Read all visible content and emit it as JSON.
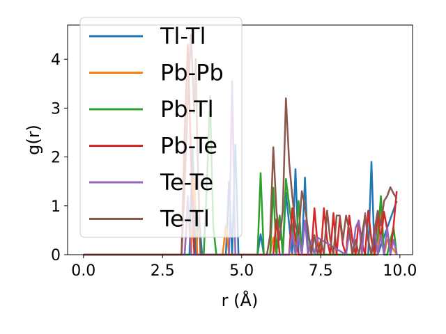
{
  "chart_data": {
    "type": "line",
    "xlabel": "r (Å)",
    "ylabel": "g(r)",
    "xlim": [
      -0.5,
      10.4
    ],
    "ylim": [
      0,
      4.7
    ],
    "xticks": [
      0.0,
      2.5,
      5.0,
      7.5,
      10.0
    ],
    "xtick_labels": [
      "0.0",
      "2.5",
      "5.0",
      "7.5",
      "10.0"
    ],
    "yticks": [
      0,
      1,
      2,
      3,
      4
    ],
    "ytick_labels": [
      "0",
      "1",
      "2",
      "3",
      "4"
    ],
    "grid": false,
    "legend_position": "top-left",
    "series": [
      {
        "name": "Tl-Tl",
        "color": "#1f77b4",
        "x": [
          0.0,
          3.35,
          3.45,
          3.55,
          3.65,
          3.75,
          4.5,
          4.6,
          4.7,
          4.8,
          4.9,
          5.5,
          5.6,
          5.7,
          6.1,
          6.2,
          6.3,
          6.4,
          6.6,
          6.7,
          6.8,
          6.9,
          7.0,
          7.1,
          8.9,
          9.0,
          9.1,
          9.2,
          9.3,
          9.9
        ],
        "y": [
          0,
          0,
          2.2,
          0,
          0.8,
          0,
          0,
          1.5,
          0,
          2.25,
          0,
          0,
          0.42,
          0,
          0,
          0.8,
          0,
          1.27,
          0,
          1.75,
          0,
          0,
          1.58,
          0,
          0,
          0,
          1.9,
          0,
          0,
          1.1
        ]
      },
      {
        "name": "Pb-Pb",
        "color": "#ff7f0e",
        "x": [
          0.0,
          3.2,
          3.3,
          3.4,
          3.5,
          3.6,
          4.4,
          4.5,
          4.6,
          5.9,
          6.0,
          6.1,
          7.3,
          7.4,
          7.5,
          9.3,
          9.4,
          9.5,
          9.6,
          9.9
        ],
        "y": [
          0,
          0,
          1.0,
          0,
          1.6,
          0,
          0,
          0.6,
          0,
          0,
          0.35,
          0,
          0,
          0.3,
          0,
          0,
          0.9,
          0,
          0.3,
          0
        ]
      },
      {
        "name": "Pb-Tl",
        "color": "#2ca02c",
        "x": [
          0.0,
          3.8,
          3.9,
          4.0,
          4.1,
          4.2,
          5.5,
          5.6,
          5.7,
          5.9,
          6.0,
          6.1,
          6.2,
          6.3,
          6.4,
          6.7,
          6.8,
          6.9,
          9.2,
          9.3,
          9.4,
          9.5,
          9.6,
          9.7,
          9.8,
          9.9
        ],
        "y": [
          0,
          0,
          1.4,
          3.25,
          0.6,
          0,
          0,
          1.67,
          0,
          0,
          1.37,
          0,
          0.8,
          0,
          1.55,
          0,
          1.1,
          0,
          0,
          0.35,
          1.2,
          0,
          0,
          0.3,
          0.55,
          0
        ]
      },
      {
        "name": "Pb-Te",
        "color": "#d62728",
        "x": [
          0.0,
          3.1,
          3.2,
          3.3,
          3.4,
          3.5,
          6.0,
          6.1,
          6.2,
          6.5,
          6.6,
          6.7,
          6.8,
          7.2,
          7.3,
          7.4,
          7.5,
          7.6,
          7.7,
          7.8,
          7.9,
          8.0,
          8.1,
          8.2,
          8.3,
          8.4,
          8.5,
          8.6,
          8.7,
          8.8,
          8.9,
          9.0,
          9.1,
          9.2,
          9.3,
          9.4,
          9.5,
          9.6,
          9.7,
          9.8,
          9.9
        ],
        "y": [
          0,
          0,
          2.5,
          4.3,
          2.0,
          0,
          0,
          0.72,
          0,
          0,
          0.95,
          0.3,
          0,
          0,
          0.95,
          0.2,
          0,
          0.95,
          0.3,
          0,
          0.85,
          0,
          0.75,
          0.2,
          0,
          0.8,
          0.3,
          0,
          0.7,
          0.25,
          0,
          0.9,
          0.3,
          0,
          0.85,
          0.3,
          0.88,
          0.5,
          0,
          0.6,
          1.3
        ]
      },
      {
        "name": "Te-Te",
        "color": "#9467bd",
        "x": [
          0.0,
          3.2,
          3.3,
          3.4,
          4.6,
          4.7,
          4.8,
          6.5,
          6.6,
          6.7,
          6.8,
          6.9,
          7.0,
          7.1,
          7.2,
          7.3,
          7.4,
          8.3,
          8.4,
          8.5,
          8.6,
          8.7,
          8.8,
          8.9,
          9.0,
          9.1,
          9.2,
          9.3,
          9.4,
          9.5,
          9.6,
          9.7,
          9.8,
          9.9
        ],
        "y": [
          0,
          0,
          1.2,
          0,
          0,
          3.55,
          0,
          0,
          0.45,
          0,
          0.4,
          0,
          0.7,
          0,
          0.3,
          0,
          0.35,
          0,
          0.45,
          0,
          0.55,
          0.7,
          0,
          0.85,
          0.3,
          0,
          0.6,
          0,
          0.4,
          0,
          0.55,
          0,
          0.3,
          0
        ]
      },
      {
        "name": "Te-Tl",
        "color": "#8c564b",
        "x": [
          0.0,
          3.1,
          3.2,
          3.3,
          3.4,
          3.5,
          3.55,
          3.6,
          3.7,
          5.8,
          5.9,
          6.0,
          6.1,
          6.2,
          6.3,
          6.4,
          6.5,
          6.6,
          6.7,
          6.8,
          6.9,
          7.0,
          7.1,
          7.2,
          7.3,
          7.4,
          7.5,
          7.6,
          7.7,
          7.8,
          7.9,
          8.0,
          8.1,
          8.2,
          8.3,
          8.4,
          8.5,
          8.6,
          8.7,
          8.8,
          8.9,
          9.0,
          9.1,
          9.2,
          9.3,
          9.4,
          9.5,
          9.6,
          9.7,
          9.8,
          9.9
        ],
        "y": [
          0,
          0,
          1.4,
          3.2,
          4.5,
          2.9,
          4.0,
          2.2,
          0,
          0,
          0.4,
          2.2,
          0.9,
          0.3,
          0.9,
          3.2,
          1.9,
          1.2,
          0.6,
          0.4,
          1.3,
          1.0,
          0.5,
          0,
          0.4,
          0,
          0.3,
          0,
          0.9,
          0.3,
          0,
          0.8,
          0.8,
          0.3,
          0.8,
          0.5,
          0,
          0.3,
          0,
          0.4,
          0.8,
          0.3,
          0,
          0.5,
          0.9,
          0.6,
          1.1,
          1.2,
          1.38,
          1.25,
          1.15
        ]
      }
    ]
  }
}
